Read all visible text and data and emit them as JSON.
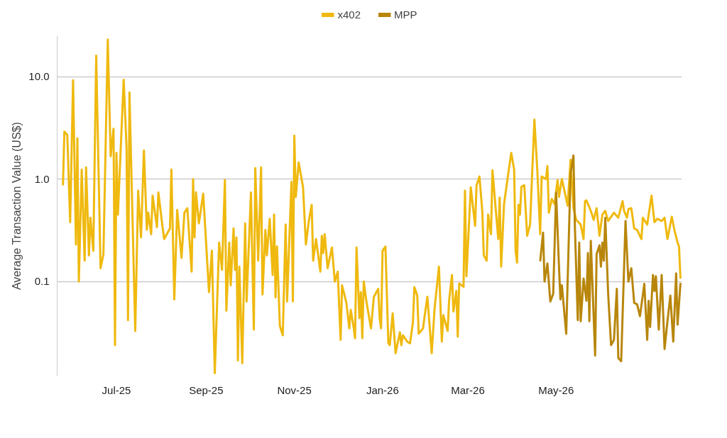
{
  "chart_data": {
    "type": "line",
    "ylabel": "Average Transaction Value (US$)",
    "log": true,
    "grid": "y",
    "legend": "top",
    "line_style": "solid",
    "marker": "none",
    "xlim": [
      "2025-05-21",
      "2026-07-27"
    ],
    "ylim": [
      0.012,
      25
    ],
    "xticks": [
      {
        "value": "2025-07-01",
        "label": "Jul-25"
      },
      {
        "value": "2025-09-01",
        "label": "Sep-25"
      },
      {
        "value": "2025-11-01",
        "label": "Nov-25"
      },
      {
        "value": "2026-01-01",
        "label": "Jan-26"
      },
      {
        "value": "2026-03-01",
        "label": "Mar-26"
      },
      {
        "value": "2026-05-01",
        "label": "May-26"
      }
    ],
    "yticks": [
      0.1,
      {
        "value": 1,
        "label": "1.0"
      },
      {
        "value": 10,
        "label": "10.0"
      }
    ],
    "series": [
      {
        "name": "x402",
        "color": "#efb90f",
        "x": [
          "2025-05-25",
          "2025-05-26",
          "2025-05-28",
          "2025-05-30",
          "2025-06-01",
          "2025-06-03",
          "2025-06-04",
          "2025-06-05",
          "2025-06-07",
          "2025-06-09",
          "2025-06-10",
          "2025-06-12",
          "2025-06-13",
          "2025-06-15",
          "2025-06-17",
          "2025-06-20",
          "2025-06-22",
          "2025-06-25",
          "2025-06-27",
          "2025-06-29",
          "2025-06-30",
          "2025-07-01",
          "2025-07-02",
          "2025-07-06",
          "2025-07-08",
          "2025-07-09",
          "2025-07-10",
          "2025-07-14",
          "2025-07-16",
          "2025-07-18",
          "2025-07-20",
          "2025-07-22",
          "2025-07-23",
          "2025-07-25",
          "2025-07-26",
          "2025-07-29",
          "2025-07-30",
          "2025-08-02",
          "2025-08-03",
          "2025-08-07",
          "2025-08-08",
          "2025-08-10",
          "2025-08-12",
          "2025-08-15",
          "2025-08-17",
          "2025-08-19",
          "2025-08-22",
          "2025-08-23",
          "2025-08-24",
          "2025-08-25",
          "2025-08-27",
          "2025-08-30",
          "2025-09-03",
          "2025-09-05",
          "2025-09-07",
          "2025-09-10",
          "2025-09-12",
          "2025-09-14",
          "2025-09-15",
          "2025-09-17",
          "2025-09-18",
          "2025-09-20",
          "2025-09-21",
          "2025-09-22",
          "2025-09-23",
          "2025-09-24",
          "2025-09-26",
          "2025-09-28",
          "2025-09-29",
          "2025-10-02",
          "2025-10-04",
          "2025-10-05",
          "2025-10-07",
          "2025-10-09",
          "2025-10-10",
          "2025-10-12",
          "2025-10-13",
          "2025-10-15",
          "2025-10-17",
          "2025-10-18",
          "2025-10-19",
          "2025-10-20",
          "2025-10-22",
          "2025-10-24",
          "2025-10-26",
          "2025-10-27",
          "2025-10-30",
          "2025-10-31",
          "2025-11-01",
          "2025-11-02",
          "2025-11-04",
          "2025-11-07",
          "2025-11-09",
          "2025-11-11",
          "2025-11-13",
          "2025-11-14",
          "2025-11-16",
          "2025-11-19",
          "2025-11-20",
          "2025-11-21",
          "2025-11-22",
          "2025-11-24",
          "2025-11-27",
          "2025-11-29",
          "2025-12-01",
          "2025-12-03",
          "2025-12-04",
          "2025-12-07",
          "2025-12-09",
          "2025-12-10",
          "2025-12-12",
          "2025-12-13",
          "2025-12-14",
          "2025-12-16",
          "2025-12-17",
          "2025-12-18",
          "2025-12-19",
          "2025-12-21",
          "2025-12-24",
          "2025-12-26",
          "2025-12-29",
          "2025-12-30",
          "2025-12-31",
          "2026-01-01",
          "2026-01-03",
          "2026-01-05",
          "2026-01-06",
          "2026-01-08",
          "2026-01-10",
          "2026-01-13",
          "2026-01-14",
          "2026-01-15",
          "2026-01-18",
          "2026-01-20",
          "2026-01-22",
          "2026-01-23",
          "2026-01-25",
          "2026-01-26",
          "2026-01-29",
          "2026-01-30",
          "2026-02-01",
          "2026-02-04",
          "2026-02-06",
          "2026-02-09",
          "2026-02-11",
          "2026-02-12",
          "2026-02-15",
          "2026-02-16",
          "2026-02-18",
          "2026-02-19",
          "2026-02-21",
          "2026-02-22",
          "2026-02-23",
          "2026-02-26",
          "2026-02-27",
          "2026-02-28",
          "2026-03-03",
          "2026-03-06",
          "2026-03-07",
          "2026-03-09",
          "2026-03-11",
          "2026-03-12",
          "2026-03-14",
          "2026-03-15",
          "2026-03-17",
          "2026-03-18",
          "2026-03-22",
          "2026-03-23",
          "2026-03-24",
          "2026-03-26",
          "2026-03-29",
          "2026-03-31",
          "2026-04-02",
          "2026-04-03",
          "2026-04-04",
          "2026-04-05",
          "2026-04-06",
          "2026-04-07",
          "2026-04-09",
          "2026-04-11",
          "2026-04-13",
          "2026-04-16",
          "2026-04-18",
          "2026-04-20",
          "2026-04-21",
          "2026-04-24",
          "2026-04-25",
          "2026-04-26",
          "2026-04-28",
          "2026-04-30",
          "2026-05-02",
          "2026-05-03",
          "2026-05-05",
          "2026-05-09",
          "2026-05-11",
          "2026-05-13",
          "2026-05-15",
          "2026-05-18",
          "2026-05-20",
          "2026-05-21",
          "2026-05-22",
          "2026-05-25",
          "2026-05-27",
          "2026-05-29",
          "2026-05-31",
          "2026-06-02",
          "2026-06-04",
          "2026-06-06",
          "2026-06-10",
          "2026-06-13",
          "2026-06-16",
          "2026-06-17",
          "2026-06-19",
          "2026-06-20",
          "2026-06-22",
          "2026-06-24",
          "2026-06-26",
          "2026-06-29",
          "2026-06-30",
          "2026-07-03",
          "2026-07-06",
          "2026-07-08",
          "2026-07-10",
          "2026-07-13",
          "2026-07-15",
          "2026-07-17",
          "2026-07-20",
          "2026-07-22",
          "2026-07-24",
          "2026-07-25",
          "2026-07-26"
        ],
        "values": [
          0.87,
          2.9,
          2.7,
          0.38,
          9.2,
          0.23,
          2.5,
          0.1,
          1.24,
          0.16,
          1.3,
          0.18,
          0.42,
          0.2,
          16,
          0.135,
          0.185,
          23,
          1.67,
          3.1,
          0.024,
          1.8,
          0.45,
          9.3,
          2.0,
          0.042,
          7.0,
          0.033,
          0.77,
          0.27,
          1.9,
          0.32,
          0.47,
          0.29,
          0.69,
          0.34,
          0.74,
          0.33,
          0.26,
          0.33,
          1.24,
          0.067,
          0.5,
          0.17,
          0.47,
          0.52,
          0.125,
          1.0,
          0.27,
          0.74,
          0.37,
          0.72,
          0.079,
          0.2,
          0.0128,
          0.24,
          0.13,
          0.98,
          0.052,
          0.24,
          0.092,
          0.33,
          0.13,
          0.27,
          0.017,
          0.14,
          0.016,
          0.37,
          0.064,
          0.74,
          0.034,
          1.28,
          0.16,
          1.3,
          0.075,
          0.32,
          0.18,
          0.41,
          0.116,
          0.45,
          0.07,
          0.22,
          0.037,
          0.03,
          0.36,
          0.064,
          0.94,
          0.064,
          2.65,
          0.67,
          1.45,
          0.84,
          0.23,
          0.39,
          0.56,
          0.16,
          0.26,
          0.125,
          0.28,
          0.19,
          0.29,
          0.135,
          0.215,
          0.1,
          0.125,
          0.027,
          0.092,
          0.062,
          0.035,
          0.053,
          0.036,
          0.028,
          0.215,
          0.044,
          0.079,
          0.028,
          0.1,
          0.062,
          0.035,
          0.071,
          0.085,
          0.044,
          0.035,
          0.2,
          0.22,
          0.025,
          0.024,
          0.049,
          0.02,
          0.032,
          0.024,
          0.03,
          0.026,
          0.025,
          0.04,
          0.088,
          0.073,
          0.031,
          0.035,
          0.045,
          0.071,
          0.02,
          0.055,
          0.14,
          0.026,
          0.047,
          0.033,
          0.065,
          0.116,
          0.051,
          0.081,
          0.029,
          0.096,
          0.089,
          0.77,
          0.113,
          0.83,
          0.35,
          0.87,
          1.06,
          0.48,
          0.18,
          0.16,
          0.45,
          0.29,
          1.22,
          0.26,
          0.66,
          0.14,
          0.57,
          1.15,
          1.8,
          1.24,
          0.2,
          0.153,
          0.56,
          0.45,
          0.84,
          0.87,
          0.28,
          0.36,
          3.8,
          1.22,
          0.29,
          1.06,
          1.0,
          1.34,
          0.47,
          0.64,
          0.57,
          0.98,
          0.67,
          1.0,
          0.55,
          1.54,
          0.52,
          0.4,
          0.36,
          0.26,
          0.61,
          0.62,
          0.49,
          0.4,
          0.52,
          0.28,
          0.45,
          0.49,
          0.39,
          0.47,
          0.42,
          0.61,
          0.49,
          0.42,
          0.51,
          0.52,
          0.33,
          0.32,
          0.26,
          0.42,
          0.36,
          0.69,
          0.38,
          0.41,
          0.39,
          0.42,
          0.26,
          0.43,
          0.31,
          0.24,
          0.22,
          0.107
        ]
      },
      {
        "name": "MPP",
        "color": "#b8860b",
        "x": [
          "2026-04-20",
          "2026-04-22",
          "2026-04-23",
          "2026-04-25",
          "2026-04-27",
          "2026-04-29",
          "2026-05-01",
          "2026-05-03",
          "2026-05-04",
          "2026-05-05",
          "2026-05-08",
          "2026-05-11",
          "2026-05-13",
          "2026-05-14",
          "2026-05-16",
          "2026-05-17",
          "2026-05-18",
          "2026-05-19",
          "2026-05-20",
          "2026-05-22",
          "2026-05-23",
          "2026-05-24",
          "2026-05-25",
          "2026-05-28",
          "2026-05-29",
          "2026-05-31",
          "2026-06-01",
          "2026-06-02",
          "2026-06-03",
          "2026-06-04",
          "2026-06-06",
          "2026-06-08",
          "2026-06-10",
          "2026-06-12",
          "2026-06-13",
          "2026-06-15",
          "2026-06-18",
          "2026-06-20",
          "2026-06-22",
          "2026-06-24",
          "2026-06-26",
          "2026-06-28",
          "2026-07-01",
          "2026-07-03",
          "2026-07-04",
          "2026-07-05",
          "2026-07-07",
          "2026-07-08",
          "2026-07-09",
          "2026-07-11",
          "2026-07-13",
          "2026-07-15",
          "2026-07-17",
          "2026-07-19",
          "2026-07-21",
          "2026-07-23",
          "2026-07-24",
          "2026-07-26"
        ],
        "values": [
          0.158,
          0.3,
          0.1,
          0.15,
          0.064,
          0.076,
          0.74,
          0.14,
          0.067,
          0.092,
          0.031,
          1.13,
          1.7,
          0.34,
          0.042,
          0.24,
          0.041,
          0.065,
          0.107,
          0.065,
          0.19,
          0.041,
          0.25,
          0.019,
          0.185,
          0.226,
          0.14,
          0.24,
          0.16,
          0.42,
          0.076,
          0.024,
          0.027,
          0.085,
          0.018,
          0.0167,
          0.39,
          0.1,
          0.135,
          0.062,
          0.06,
          0.046,
          0.095,
          0.027,
          0.065,
          0.036,
          0.116,
          0.081,
          0.113,
          0.034,
          0.116,
          0.022,
          0.041,
          0.073,
          0.026,
          0.12,
          0.038,
          0.097
        ]
      }
    ]
  }
}
